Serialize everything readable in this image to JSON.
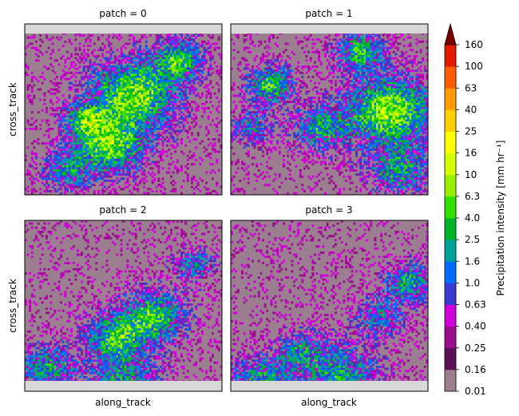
{
  "chart_data": {
    "type": "heatmap",
    "layout": "2x2 facet grid",
    "facet_label_prefix": "patch = ",
    "panels": [
      {
        "patch": "0",
        "title": "patch = 0",
        "ylabel": "cross_track",
        "xlabel": ""
      },
      {
        "patch": "1",
        "title": "patch = 1",
        "ylabel": "",
        "xlabel": ""
      },
      {
        "patch": "2",
        "title": "patch = 2",
        "ylabel": "cross_track",
        "xlabel": "along_track"
      },
      {
        "patch": "3",
        "title": "patch = 3",
        "ylabel": "",
        "xlabel": "along_track"
      }
    ],
    "xlabel": "along_track",
    "ylabel": "cross_track",
    "ticks_shown": false,
    "colorbar": {
      "label": "Precipitation intensity [mm hr⁻¹]",
      "extend": "max",
      "tick_labels": [
        "0.01",
        "0.16",
        "0.25",
        "0.40",
        "0.63",
        "1.0",
        "1.6",
        "2.5",
        "4.0",
        "6.3",
        "10",
        "16",
        "25",
        "40",
        "63",
        "100",
        "160"
      ],
      "bin_colors": [
        "#9b7f91",
        "#5b0f57",
        "#9a0e8c",
        "#d000d8",
        "#3a3ad0",
        "#006cff",
        "#00a19b",
        "#00b42a",
        "#33e000",
        "#98f000",
        "#d4ff00",
        "#ffff00",
        "#ffd000",
        "#ff9c00",
        "#ff5c00",
        "#e31a00"
      ],
      "extend_color": "#7a0000"
    },
    "background_color": "#9b7f91",
    "nodata_color": "#d8d8d8"
  }
}
